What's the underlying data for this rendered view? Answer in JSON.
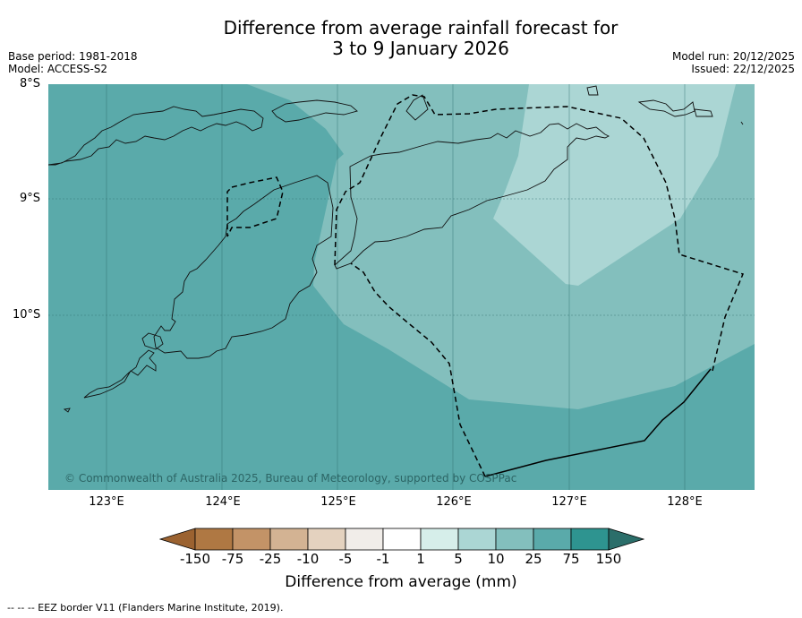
{
  "title_line1": "Difference from average rainfall forecast for",
  "title_line2": "3 to 9 January 2026",
  "meta": {
    "base_period": "Base period: 1981-2018",
    "model": "Model: ACCESS-S2",
    "model_run": "Model run: 20/12/2025",
    "issued": "Issued: 22/12/2025"
  },
  "lat_labels": [
    "8°S",
    "9°S",
    "10°S"
  ],
  "lon_labels": [
    "123°E",
    "124°E",
    "125°E",
    "126°E",
    "127°E",
    "128°E"
  ],
  "copyright": "© Commonwealth of Australia 2025, Bureau of Meteorology, supported by COSPPac",
  "colorbar": {
    "labels": [
      "-150",
      "-75",
      "-25",
      "-10",
      "-5",
      "-1",
      "1",
      "5",
      "10",
      "25",
      "75",
      "150"
    ],
    "colors": [
      "#9b6230",
      "#af7843",
      "#c39367",
      "#d3b393",
      "#e4d2bf",
      "#f1ede9",
      "#ffffff",
      "#d6eeea",
      "#abd6d4",
      "#83bfbd",
      "#5aaaaa",
      "#2e9490",
      "#2b6e6a"
    ],
    "title": "Difference from average (mm)"
  },
  "footnote": "--  --  -- EEZ border V11 (Flanders Marine Institute, 2019).",
  "map_colors": {
    "band_75": "#5aaaaa",
    "band_25": "#83bfbd",
    "band_10": "#abd6d4",
    "coast": "#111111",
    "grid": "#2f6f6f"
  }
}
